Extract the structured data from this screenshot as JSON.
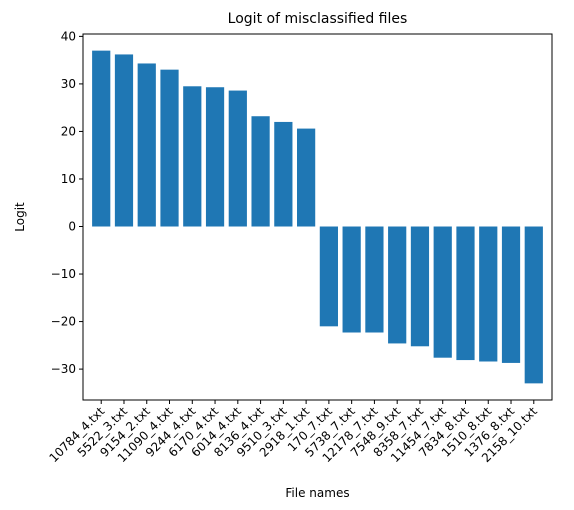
{
  "chart_data": {
    "type": "bar",
    "title": "Logit of misclassified files",
    "xlabel": "File names",
    "ylabel": "Logit",
    "ylim": [
      -36.5,
      40.5
    ],
    "yticks": [
      -30,
      -20,
      -10,
      0,
      10,
      20,
      30,
      40
    ],
    "grid": false,
    "bar_color": "#1f77b4",
    "categories": [
      "10784_4.txt",
      "5522_3.txt",
      "9154_2.txt",
      "11090_4.txt",
      "9244_4.txt",
      "6170_4.txt",
      "6014_4.txt",
      "8136_4.txt",
      "9510_3.txt",
      "2918_1.txt",
      "170_7.txt",
      "5738_7.txt",
      "12178_7.txt",
      "7548_9.txt",
      "8358_7.txt",
      "11454_7.txt",
      "7834_8.txt",
      "1510_8.txt",
      "1376_8.txt",
      "2158_10.txt"
    ],
    "values": [
      37.0,
      36.2,
      34.3,
      33.0,
      29.5,
      29.3,
      28.6,
      23.2,
      22.0,
      20.6,
      -21.0,
      -22.3,
      -22.3,
      -24.6,
      -25.2,
      -27.6,
      -28.1,
      -28.4,
      -28.7,
      -33.0
    ]
  }
}
